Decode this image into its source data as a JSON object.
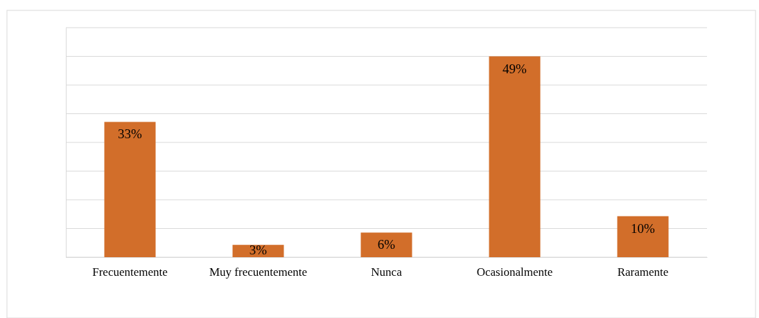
{
  "chart_data": {
    "type": "bar",
    "categories": [
      "Frecuentemente",
      "Muy frecuentemente",
      "Nunca",
      "Ocasionalmente",
      "Raramente"
    ],
    "values": [
      33,
      3,
      6,
      49,
      10
    ],
    "value_labels": [
      "33%",
      "3%",
      "6%",
      "49%",
      "10%"
    ],
    "color": "#d26e2a",
    "ylim": [
      0,
      56
    ],
    "yticks": [
      {
        "value": 0,
        "label": null
      },
      {
        "value": 7,
        "label": null
      },
      {
        "value": 14,
        "label": null
      },
      {
        "value": 21,
        "label": null
      },
      {
        "value": 28,
        "label": null
      },
      {
        "value": 35,
        "label": null
      },
      {
        "value": 42,
        "label": null
      },
      {
        "value": 49,
        "label": null
      },
      {
        "value": 56,
        "label": null
      }
    ],
    "grid": true,
    "tick_labels": "x"
  }
}
